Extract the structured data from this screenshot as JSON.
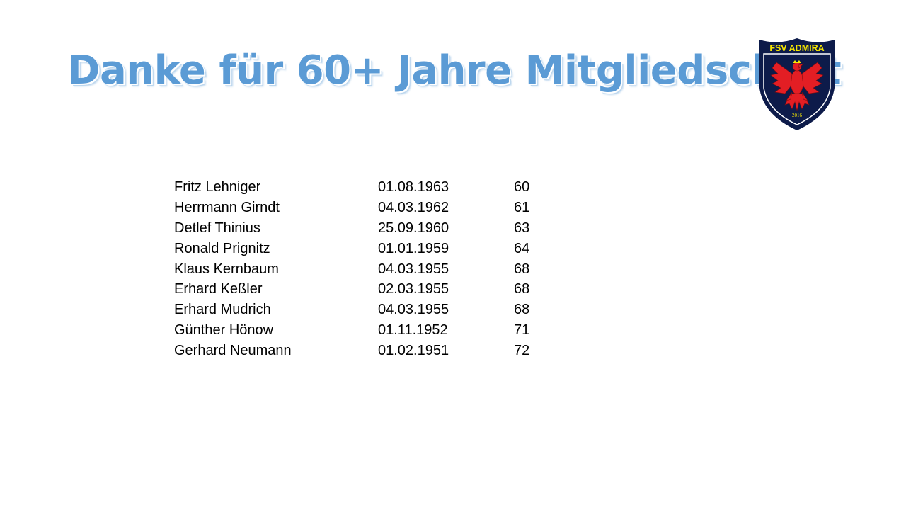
{
  "slide": {
    "title": "Danke für 60+ Jahre Mitgliedschaft"
  },
  "logo": {
    "club_name": "FSV ADMIRA",
    "year": "2016",
    "colors": {
      "shield": "#0d1b4a",
      "eagle": "#e31e24",
      "text": "#f5e600"
    }
  },
  "members": [
    {
      "name": "Fritz Lehniger",
      "date": "01.08.1963",
      "years": "60"
    },
    {
      "name": "Herrmann Girndt",
      "date": "04.03.1962",
      "years": "61"
    },
    {
      "name": "Detlef Thinius",
      "date": "25.09.1960",
      "years": "63"
    },
    {
      "name": "Ronald Prignitz",
      "date": "01.01.1959",
      "years": "64"
    },
    {
      "name": "Klaus Kernbaum",
      "date": "04.03.1955",
      "years": "68"
    },
    {
      "name": "Erhard Keßler",
      "date": "02.03.1955",
      "years": "68"
    },
    {
      "name": "Erhard Mudrich",
      "date": "04.03.1955",
      "years": "68"
    },
    {
      "name": "Günther Hönow",
      "date": "01.11.1952",
      "years": "71"
    },
    {
      "name": "Gerhard Neumann",
      "date": "01.02.1951",
      "years": "72"
    }
  ],
  "colors": {
    "title": "#5b9bd5",
    "text": "#000000",
    "background": "#ffffff"
  }
}
